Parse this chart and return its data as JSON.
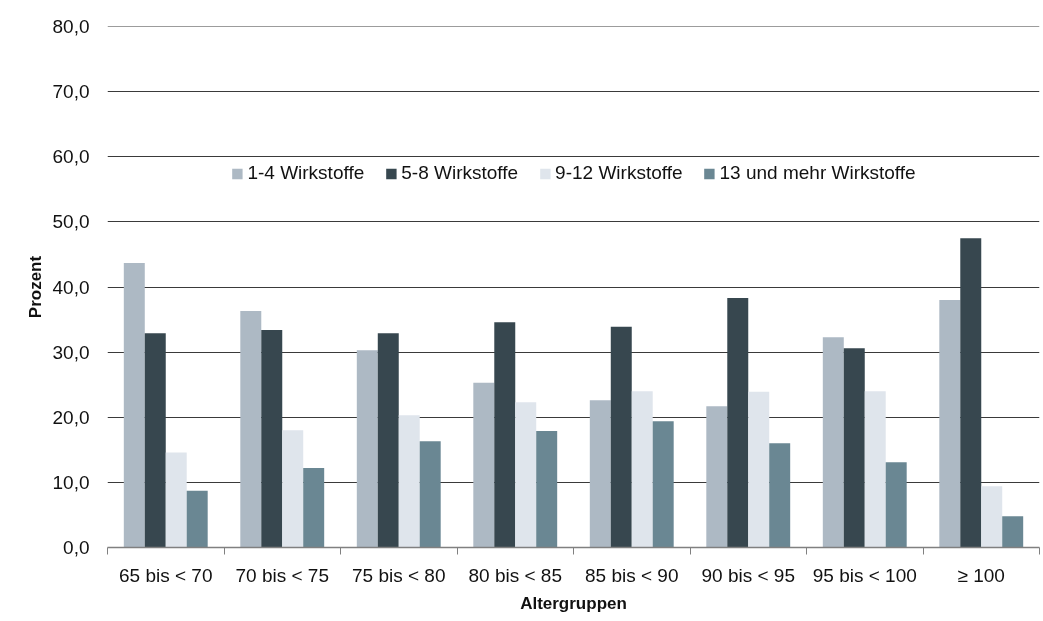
{
  "chart_data": {
    "type": "bar",
    "xlabel": "Altergruppen",
    "ylabel": "Prozent",
    "categories": [
      "65 bis < 70",
      "70 bis < 75",
      "75 bis < 80",
      "80 bis < 85",
      "85 bis < 90",
      "90 bis < 95",
      "95 bis < 100",
      "≥ 100"
    ],
    "series": [
      {
        "name": "1-4 Wirkstoffe",
        "color": "#adb9c4",
        "values": [
          43.7,
          36.3,
          30.3,
          25.3,
          22.6,
          21.7,
          32.3,
          38.0
        ]
      },
      {
        "name": "5-8 Wirkstoffe",
        "color": "#37474f",
        "values": [
          32.9,
          33.4,
          32.9,
          34.6,
          33.9,
          38.3,
          30.6,
          47.5
        ]
      },
      {
        "name": "9-12 Wirkstoffe",
        "color": "#dfe5ec",
        "values": [
          14.6,
          18.0,
          20.3,
          22.3,
          24.0,
          23.9,
          24.0,
          9.4
        ]
      },
      {
        "name": "13 und mehr Wirkstoffe",
        "color": "#6a8793",
        "values": [
          8.7,
          12.2,
          16.3,
          17.9,
          19.4,
          16.0,
          13.1,
          4.8
        ]
      }
    ],
    "ylim": [
      0,
      80
    ],
    "yticks": [
      {
        "value": 0,
        "label": "0,0"
      },
      {
        "value": 10,
        "label": "10,0"
      },
      {
        "value": 20,
        "label": "20,0"
      },
      {
        "value": 30,
        "label": "30,0"
      },
      {
        "value": 40,
        "label": "40,0"
      },
      {
        "value": 50,
        "label": "50,0"
      },
      {
        "value": 60,
        "label": "60,0"
      },
      {
        "value": 70,
        "label": "70,0"
      },
      {
        "value": 80,
        "label": "80,0"
      }
    ],
    "grid": "y",
    "legend": "top"
  }
}
